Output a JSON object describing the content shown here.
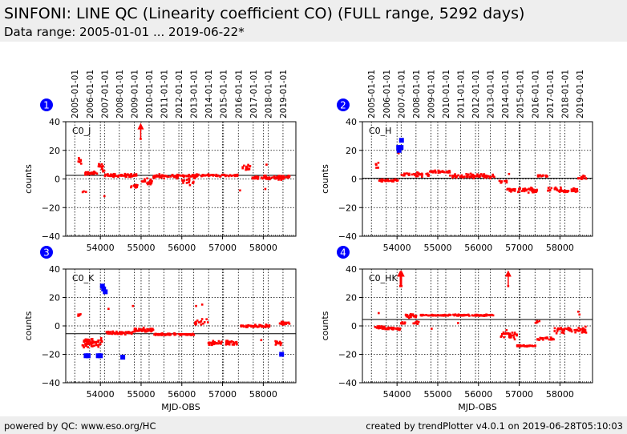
{
  "header": {
    "title": "SINFONI: LINE QC (Linearity coefficient CO) (FULL range, 5292 days)",
    "subtitle": "Data range: 2005-01-01 ... 2019-06-22*"
  },
  "footer": {
    "left": "powered by QC: www.eso.org/HC",
    "right": "created by trendPlotter v4.0.1 on 2019-06-28T05:10:03"
  },
  "colors": {
    "data": "#ff0000",
    "outlier": "#0000ff",
    "badge": "#0000ff"
  },
  "chart_data": [
    {
      "type": "scatter",
      "panel": "1",
      "label": "C0_J",
      "xlabel": "",
      "ylabel": "counts",
      "xlim": [
        53150,
        58800
      ],
      "ylim": [
        -40,
        40
      ],
      "xticks": [
        54000,
        55000,
        56000,
        57000,
        58000
      ],
      "yticks": [
        -40,
        -20,
        0,
        20,
        40
      ],
      "top_ticks": [
        "2005-01-01",
        "2006-01-01",
        "2007-01-01",
        "2008-01-01",
        "2009-01-01",
        "2010-01-01",
        "2011-01-01",
        "2012-01-01",
        "2013-01-01",
        "2014-01-01",
        "2015-01-01",
        "2016-01-01",
        "2017-01-01",
        "2018-01-01",
        "2019-01-01"
      ],
      "reference_line": 2.5,
      "grid": true,
      "segments": [
        {
          "x0": 53450,
          "x1": 53550,
          "y": 12,
          "spread": 4,
          "n": 8
        },
        {
          "x0": 53550,
          "x1": 53650,
          "y": -9,
          "spread": 1,
          "n": 3
        },
        {
          "x0": 53600,
          "x1": 53950,
          "y": 4,
          "spread": 1.5,
          "n": 30
        },
        {
          "x0": 53950,
          "x1": 54100,
          "y": 8,
          "spread": 5,
          "n": 15
        },
        {
          "x0": 54100,
          "x1": 54900,
          "y": 2.5,
          "spread": 1.5,
          "n": 60
        },
        {
          "x0": 54750,
          "x1": 54950,
          "y": -5,
          "spread": 2,
          "n": 12
        },
        {
          "x0": 55000,
          "x1": 55300,
          "y": -2,
          "spread": 3,
          "n": 20
        },
        {
          "x0": 55300,
          "x1": 56400,
          "y": 2,
          "spread": 2,
          "n": 80
        },
        {
          "x0": 56000,
          "x1": 56300,
          "y": -2,
          "spread": 4,
          "n": 15
        },
        {
          "x0": 56400,
          "x1": 57400,
          "y": 2.5,
          "spread": 1,
          "n": 50
        },
        {
          "x0": 57450,
          "x1": 57700,
          "y": 8,
          "spread": 3,
          "n": 15
        },
        {
          "x0": 57700,
          "x1": 58650,
          "y": 1,
          "spread": 2,
          "n": 70
        }
      ],
      "points": [
        [
          54100,
          -12
        ],
        [
          57430,
          -8
        ],
        [
          58050,
          -7
        ],
        [
          58080,
          10
        ]
      ],
      "arrows": [
        {
          "x": 54990,
          "y0": 28,
          "y1": 38
        }
      ],
      "outliers": []
    },
    {
      "type": "scatter",
      "panel": "2",
      "label": "C0_H",
      "xlabel": "",
      "ylabel": "counts",
      "xlim": [
        53150,
        58800
      ],
      "ylim": [
        -40,
        40
      ],
      "xticks": [
        54000,
        55000,
        56000,
        57000,
        58000
      ],
      "yticks": [
        -40,
        -20,
        0,
        20,
        40
      ],
      "top_ticks": [
        "2005-01-01",
        "2006-01-01",
        "2007-01-01",
        "2008-01-01",
        "2009-01-01",
        "2010-01-01",
        "2011-01-01",
        "2012-01-01",
        "2013-01-01",
        "2014-01-01",
        "2015-01-01",
        "2016-01-01",
        "2017-01-01",
        "2018-01-01",
        "2019-01-01"
      ],
      "reference_line": 0.5,
      "grid": true,
      "segments": [
        {
          "x0": 53450,
          "x1": 53550,
          "y": 10,
          "spread": 3,
          "n": 6
        },
        {
          "x0": 53550,
          "x1": 54050,
          "y": -1,
          "spread": 1,
          "n": 35
        },
        {
          "x0": 54100,
          "x1": 54800,
          "y": 3,
          "spread": 2,
          "n": 40
        },
        {
          "x0": 54800,
          "x1": 55300,
          "y": 5,
          "spread": 1.2,
          "n": 35
        },
        {
          "x0": 55300,
          "x1": 56400,
          "y": 2,
          "spread": 2,
          "n": 80
        },
        {
          "x0": 56500,
          "x1": 56700,
          "y": -2,
          "spread": 2,
          "n": 10
        },
        {
          "x0": 56700,
          "x1": 57450,
          "y": -8,
          "spread": 2.5,
          "n": 50
        },
        {
          "x0": 57450,
          "x1": 57700,
          "y": 2,
          "spread": 0.8,
          "n": 15
        },
        {
          "x0": 57700,
          "x1": 58450,
          "y": -8,
          "spread": 3,
          "n": 50
        },
        {
          "x0": 58450,
          "x1": 58650,
          "y": 1,
          "spread": 2.5,
          "n": 12
        }
      ],
      "points": [
        [
          54040,
          18
        ],
        [
          56750,
          3.5
        ]
      ],
      "arrows": [],
      "outliers": [
        [
          54040,
          22
        ],
        [
          54050,
          20
        ],
        [
          54110,
          27
        ],
        [
          54100,
          22
        ]
      ]
    },
    {
      "type": "scatter",
      "panel": "3",
      "label": "C0_K",
      "xlabel": "MJD-OBS",
      "ylabel": "counts",
      "xlim": [
        53150,
        58800
      ],
      "ylim": [
        -40,
        40
      ],
      "xticks": [
        54000,
        55000,
        56000,
        57000,
        58000
      ],
      "yticks": [
        -40,
        -20,
        0,
        20,
        40
      ],
      "top_ticks": [],
      "reference_line": -5.5,
      "grid": true,
      "segments": [
        {
          "x0": 53450,
          "x1": 53550,
          "y": 8,
          "spread": 2,
          "n": 6
        },
        {
          "x0": 53550,
          "x1": 54050,
          "y": -12,
          "spread": 5,
          "n": 60
        },
        {
          "x0": 54150,
          "x1": 54800,
          "y": -5,
          "spread": 1.5,
          "n": 50
        },
        {
          "x0": 54800,
          "x1": 55300,
          "y": -3,
          "spread": 2,
          "n": 45
        },
        {
          "x0": 55300,
          "x1": 56300,
          "y": -6,
          "spread": 1,
          "n": 80
        },
        {
          "x0": 56300,
          "x1": 56650,
          "y": 3,
          "spread": 4,
          "n": 15
        },
        {
          "x0": 56650,
          "x1": 57400,
          "y": -12,
          "spread": 2,
          "n": 60
        },
        {
          "x0": 57450,
          "x1": 58150,
          "y": 0,
          "spread": 1.5,
          "n": 50
        },
        {
          "x0": 58300,
          "x1": 58450,
          "y": -12,
          "spread": 3,
          "n": 15
        },
        {
          "x0": 58400,
          "x1": 58650,
          "y": 2,
          "spread": 2,
          "n": 20
        }
      ],
      "points": [
        [
          54200,
          12
        ],
        [
          54800,
          14
        ],
        [
          56350,
          14
        ],
        [
          56500,
          15
        ],
        [
          57950,
          -10
        ]
      ],
      "arrows": [],
      "outliers": [
        [
          54050,
          28
        ],
        [
          54080,
          26
        ],
        [
          54120,
          24
        ],
        [
          53650,
          -21
        ],
        [
          53700,
          -21
        ],
        [
          53950,
          -21
        ],
        [
          54000,
          -21
        ],
        [
          54550,
          -22
        ],
        [
          58450,
          -20
        ]
      ]
    },
    {
      "type": "scatter",
      "panel": "4",
      "label": "C0_HK",
      "xlabel": "MJD-OBS",
      "ylabel": "counts",
      "xlim": [
        53150,
        58800
      ],
      "ylim": [
        -40,
        40
      ],
      "xticks": [
        54000,
        55000,
        56000,
        57000,
        58000
      ],
      "yticks": [
        -40,
        -20,
        0,
        20,
        40
      ],
      "top_ticks": [],
      "reference_line": 4.5,
      "grid": true,
      "segments": [
        {
          "x0": 53450,
          "x1": 53700,
          "y": -1,
          "spread": 2,
          "n": 15
        },
        {
          "x0": 53700,
          "x1": 54100,
          "y": -2,
          "spread": 1.2,
          "n": 30
        },
        {
          "x0": 54100,
          "x1": 54200,
          "y": 2,
          "spread": 1.5,
          "n": 10
        },
        {
          "x0": 54200,
          "x1": 54500,
          "y": 7,
          "spread": 2,
          "n": 25
        },
        {
          "x0": 54400,
          "x1": 54550,
          "y": 2,
          "spread": 2,
          "n": 8
        },
        {
          "x0": 54550,
          "x1": 56400,
          "y": 7.5,
          "spread": 0.7,
          "n": 120
        },
        {
          "x0": 56550,
          "x1": 56950,
          "y": -6,
          "spread": 4,
          "n": 30
        },
        {
          "x0": 56950,
          "x1": 57400,
          "y": -14,
          "spread": 0.8,
          "n": 40
        },
        {
          "x0": 57400,
          "x1": 57500,
          "y": 3,
          "spread": 2,
          "n": 6
        },
        {
          "x0": 57450,
          "x1": 57850,
          "y": -9,
          "spread": 1.5,
          "n": 30
        },
        {
          "x0": 57850,
          "x1": 58650,
          "y": -3,
          "spread": 3,
          "n": 60
        }
      ],
      "points": [
        [
          53550,
          9
        ],
        [
          54850,
          -2
        ],
        [
          55500,
          2
        ],
        [
          58450,
          10
        ],
        [
          58480,
          8
        ]
      ],
      "arrows": [
        {
          "x": 54080,
          "y0": 28,
          "y1": 38
        },
        {
          "x": 54110,
          "y0": 28,
          "y1": 38
        },
        {
          "x": 56730,
          "y0": 28,
          "y1": 38
        }
      ],
      "outliers": []
    }
  ]
}
